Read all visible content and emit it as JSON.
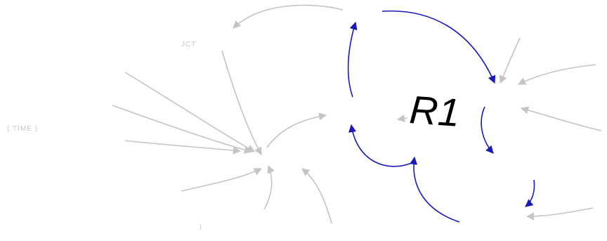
{
  "diagram": {
    "loop_label": "R1",
    "faint_labels": {
      "jct": "JCT",
      "time": "( TIME )",
      "i": "I"
    },
    "colors": {
      "loop_links": "#1a1ab8",
      "context_links": "#c4c4c4",
      "loop_label": "#000000"
    }
  }
}
